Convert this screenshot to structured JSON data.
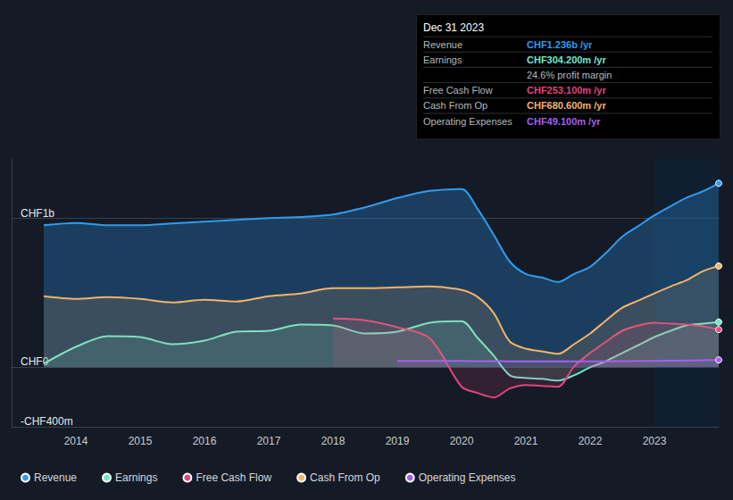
{
  "chart_data": {
    "type": "line",
    "x": [
      2013.5,
      2014,
      2014.5,
      2015,
      2015.5,
      2016,
      2016.5,
      2017,
      2017.5,
      2018,
      2018.5,
      2019,
      2019.5,
      2020,
      2020.25,
      2020.5,
      2020.75,
      2021,
      2021.25,
      2021.5,
      2021.75,
      2022,
      2022.25,
      2022.5,
      2022.75,
      2023,
      2023.25,
      2023.5,
      2023.75,
      2024
    ],
    "xlim": [
      2013,
      2024
    ],
    "xticks": [
      2014,
      2015,
      2016,
      2017,
      2018,
      2019,
      2020,
      2021,
      2022,
      2023
    ],
    "ylim": [
      -400,
      1400
    ],
    "yticks": [
      {
        "value": -400,
        "label": "-CHF400m"
      },
      {
        "value": 0,
        "label": "CHF0"
      },
      {
        "value": 1000,
        "label": "CHF1b"
      }
    ],
    "grid": true,
    "legend": "bottom",
    "series": [
      {
        "name": "Revenue",
        "color": "#2f9cf0",
        "values": [
          955,
          970,
          955,
          955,
          967,
          979,
          991,
          1003,
          1010,
          1027,
          1075,
          1137,
          1185,
          1197,
          1063,
          890,
          710,
          627,
          603,
          573,
          627,
          675,
          770,
          878,
          949,
          1021,
          1081,
          1140,
          1182,
          1236
        ]
      },
      {
        "name": "Earnings",
        "color": "#6ee8cf",
        "values": [
          24,
          137,
          209,
          203,
          155,
          179,
          239,
          245,
          287,
          281,
          227,
          239,
          299,
          310,
          197,
          78,
          -54,
          -72,
          -78,
          -90,
          -54,
          0,
          42,
          96,
          149,
          203,
          245,
          281,
          293,
          304.2
        ]
      },
      {
        "name": "Free Cash Flow",
        "color": "#e0457e",
        "values": [
          null,
          null,
          null,
          null,
          null,
          null,
          null,
          null,
          null,
          328,
          316,
          269,
          197,
          -130,
          -173,
          -203,
          -143,
          -119,
          -125,
          -131,
          6,
          96,
          173,
          245,
          281,
          299,
          293,
          287,
          275,
          253.1
        ]
      },
      {
        "name": "Cash From Op",
        "color": "#f2b36b",
        "values": [
          478,
          460,
          472,
          460,
          436,
          454,
          442,
          478,
          496,
          531,
          531,
          537,
          543,
          519,
          472,
          364,
          173,
          125,
          107,
          90,
          155,
          227,
          316,
          400,
          448,
          496,
          543,
          585,
          645,
          680.6
        ]
      },
      {
        "name": "Operating Expenses",
        "color": "#a55ff0",
        "values": [
          null,
          null,
          null,
          null,
          null,
          null,
          null,
          null,
          null,
          null,
          null,
          42,
          42,
          42,
          41,
          41,
          40,
          40,
          40,
          40,
          39,
          39,
          40,
          41,
          42,
          43,
          44,
          45,
          47,
          49.1
        ]
      }
    ],
    "summary": {
      "title": "Dec 31 2023",
      "rows": [
        {
          "label": "Revenue",
          "value": "CHF1.236b /yr",
          "color": "#2f9cf0"
        },
        {
          "label": "Earnings",
          "value": "CHF304.200m /yr",
          "color": "#6ee8cf"
        },
        {
          "value": "24.6% profit margin",
          "color": "#b5b8bd"
        },
        {
          "label": "Free Cash Flow",
          "value": "CHF253.100m /yr",
          "color": "#e0457e"
        },
        {
          "label": "Cash From Op",
          "value": "CHF680.600m /yr",
          "color": "#f2b36b"
        },
        {
          "label": "Operating Expenses",
          "value": "CHF49.100m /yr",
          "color": "#a55ff0"
        }
      ]
    }
  }
}
